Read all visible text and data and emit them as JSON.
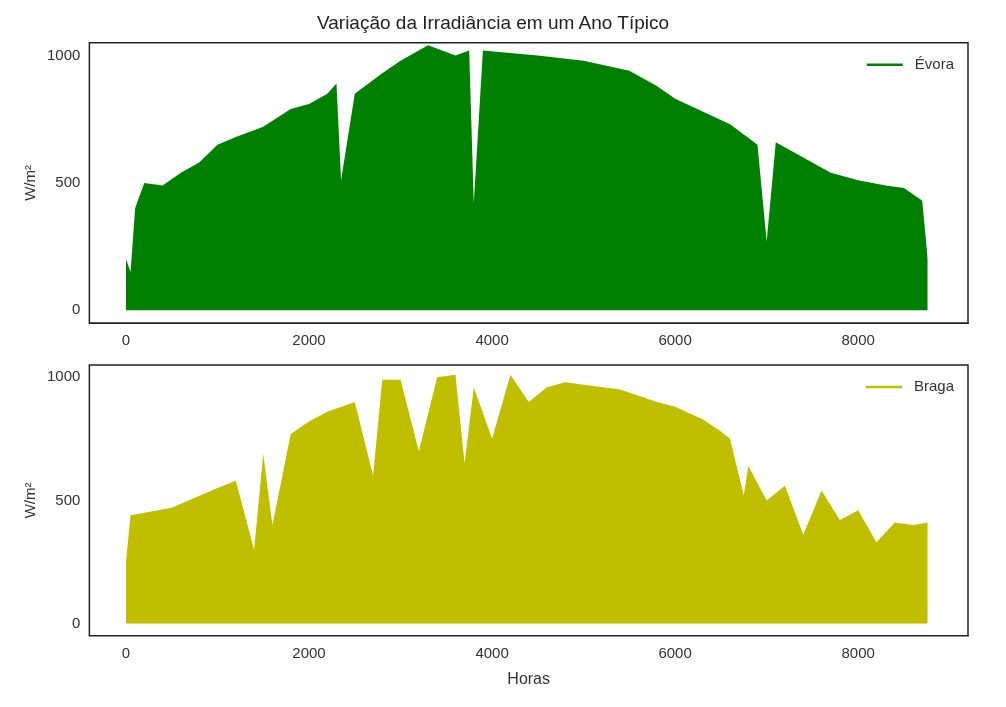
{
  "chart_data": [
    {
      "type": "area",
      "title": "Variação da Irradiância em um Ano Típico",
      "ylabel": "W/m²",
      "x": [
        0,
        50,
        100,
        200,
        400,
        600,
        800,
        1000,
        1200,
        1500,
        1800,
        2000,
        2200,
        2300,
        2350,
        2500,
        2800,
        3000,
        3300,
        3600,
        3750,
        3800,
        3900,
        4200,
        4500,
        5000,
        5500,
        5800,
        6000,
        6300,
        6600,
        6900,
        7000,
        7100,
        7400,
        7700,
        8000,
        8300,
        8500,
        8700,
        8760
      ],
      "series": [
        {
          "name": "Évora",
          "color": "#008000",
          "values": [
            200,
            150,
            400,
            500,
            490,
            540,
            580,
            650,
            680,
            720,
            790,
            810,
            850,
            890,
            510,
            850,
            930,
            980,
            1040,
            1000,
            1020,
            420,
            1020,
            1010,
            1000,
            980,
            940,
            880,
            830,
            780,
            730,
            650,
            270,
            660,
            600,
            540,
            510,
            490,
            480,
            430,
            200
          ]
        }
      ],
      "xlim": [
        -400,
        9200
      ],
      "xticks": [
        0,
        2000,
        4000,
        6000,
        8000
      ],
      "ylim": [
        -50,
        1050
      ],
      "yticks": [
        0,
        500,
        1000
      ],
      "grid": false,
      "legend": "top right"
    },
    {
      "type": "area",
      "xlabel": "Horas",
      "ylabel": "W/m²",
      "x": [
        0,
        50,
        500,
        1000,
        1200,
        1400,
        1500,
        1600,
        1800,
        2000,
        2200,
        2500,
        2700,
        2800,
        3000,
        3200,
        3400,
        3600,
        3700,
        3800,
        4000,
        4200,
        4400,
        4600,
        4800,
        5000,
        5400,
        5800,
        6000,
        6300,
        6500,
        6600,
        6750,
        6800,
        7000,
        7200,
        7400,
        7600,
        7800,
        8000,
        8200,
        8400,
        8600,
        8760
      ],
      "series": [
        {
          "name": "Braga",
          "color": "#bfbf00",
          "values": [
            250,
            440,
            470,
            550,
            580,
            300,
            690,
            400,
            770,
            820,
            860,
            900,
            600,
            990,
            990,
            700,
            1000,
            1010,
            650,
            960,
            750,
            1010,
            900,
            960,
            980,
            970,
            950,
            900,
            880,
            830,
            780,
            750,
            520,
            640,
            500,
            560,
            360,
            540,
            420,
            460,
            330,
            410,
            400,
            410
          ]
        }
      ],
      "xlim": [
        -400,
        9200
      ],
      "xticks": [
        0,
        2000,
        4000,
        6000,
        8000
      ],
      "ylim": [
        -50,
        1050
      ],
      "yticks": [
        0,
        500,
        1000
      ],
      "grid": false,
      "legend": "top right"
    }
  ]
}
